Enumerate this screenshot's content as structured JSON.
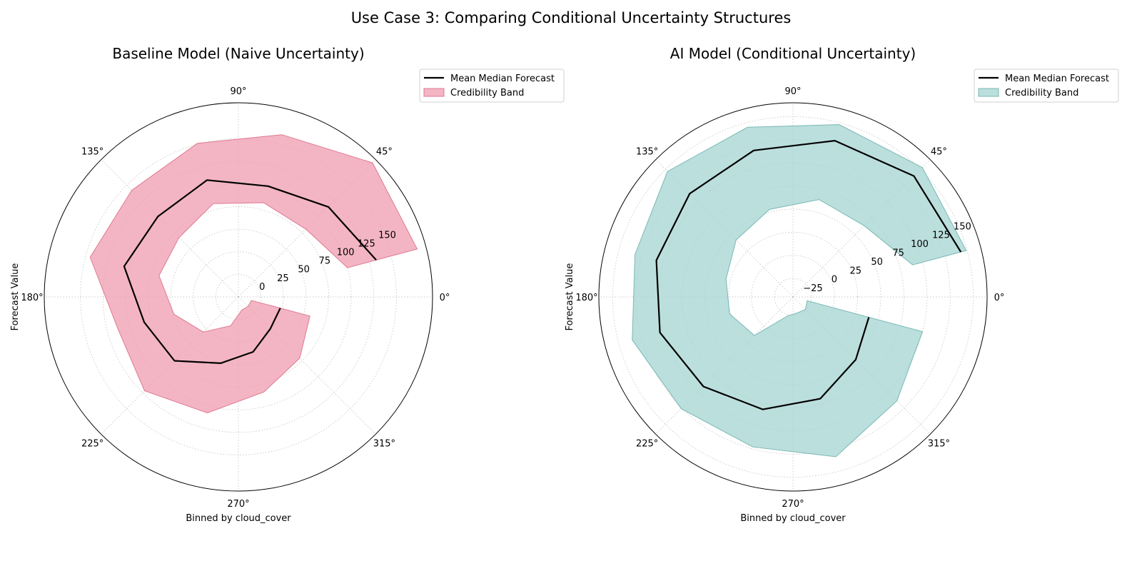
{
  "figure": {
    "title": "Use Case 3: Comparing Conditional Uncertainty Structures"
  },
  "chart_data": [
    {
      "type": "radar",
      "title": "Baseline Model (Naive Uncertainty)",
      "xlabel": "Binned by cloud_cover",
      "ylabel": "Forecast Value",
      "angle_ticks": [
        "0°",
        "45°",
        "90°",
        "135°",
        "180°",
        "225°",
        "270°",
        "315°"
      ],
      "radial_ticks": [
        "0",
        "25",
        "50",
        "75",
        "100",
        "125",
        "150"
      ],
      "radial_tick_values": [
        0,
        25,
        50,
        75,
        100,
        125,
        150
      ],
      "rlim": [
        -25,
        190
      ],
      "grid": true,
      "legend": {
        "position": "upper-right",
        "entries": [
          "Mean Median Forecast",
          "Credibility Band"
        ]
      },
      "band_color": "#f0a0b4",
      "band_edge": "#e07890",
      "theta_deg": [
        345,
        315,
        285,
        255,
        225,
        195,
        165,
        135,
        105,
        75,
        45,
        15
      ],
      "median": [
        23,
        25,
        38,
        51,
        75,
        83,
        106,
        101,
        109,
        102,
        116,
        133
      ],
      "lower": [
        -10,
        -10,
        -10,
        8,
        30,
        49,
        66,
        68,
        82,
        83,
        81,
        100
      ],
      "upper": [
        57,
        71,
        84,
        108,
        122,
        113,
        145,
        142,
        151,
        161,
        185,
        180
      ],
      "series": [
        {
          "name": "Mean Median Forecast"
        },
        {
          "name": "Credibility Band"
        }
      ]
    },
    {
      "type": "radar",
      "title": "AI Model (Conditional Uncertainty)",
      "xlabel": "Binned by cloud_cover",
      "ylabel": "Forecast Value",
      "angle_ticks": [
        "0°",
        "45°",
        "90°",
        "135°",
        "180°",
        "225°",
        "270°",
        "315°"
      ],
      "radial_ticks": [
        "−25",
        "0",
        "25",
        "50",
        "75",
        "100",
        "125",
        "150"
      ],
      "radial_tick_values": [
        -25,
        0,
        25,
        50,
        75,
        100,
        125,
        150
      ],
      "rlim": [
        -45,
        165
      ],
      "grid": true,
      "legend": {
        "position": "upper-right",
        "entries": [
          "Mean Median Forecast",
          "Credibility Band"
        ]
      },
      "band_color": "#a8d6d4",
      "band_edge": "#78b8b4",
      "theta_deg": [
        345,
        315,
        285,
        255,
        225,
        195,
        165,
        135,
        105,
        75,
        45,
        15
      ],
      "median": [
        40,
        51,
        69,
        81,
        92,
        104,
        108,
        113,
        119,
        130,
        140,
        143
      ],
      "lower": [
        -29,
        -26,
        -27,
        -24,
        14,
        26,
        30,
        42,
        53,
        64,
        64,
        89
      ],
      "upper": [
        100,
        114,
        134,
        123,
        126,
        135,
        132,
        147,
        145,
        148,
        153,
        149
      ],
      "series": [
        {
          "name": "Mean Median Forecast"
        },
        {
          "name": "Credibility Band"
        }
      ]
    }
  ]
}
